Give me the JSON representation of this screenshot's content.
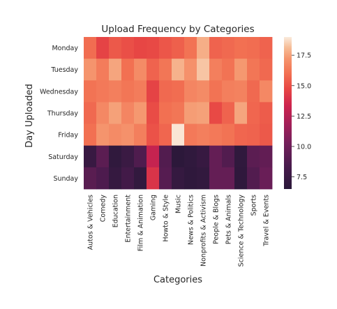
{
  "chart_data": {
    "type": "heatmap",
    "title": "Upload Frequency by Categories",
    "xlabel": "Categories",
    "ylabel": "Day Uploaded",
    "x_categories": [
      "Autos & Vehicles",
      "Comedy",
      "Education",
      "Entertainment",
      "Film & Animation",
      "Gaming",
      "Howto & Style",
      "Music",
      "News & Politics",
      "Nonprofits & Activism",
      "People & Blogs",
      "Pets & Animals",
      "Science & Technology",
      "Sports",
      "Travel & Events"
    ],
    "y_categories": [
      "Monday",
      "Tuesday",
      "Wednesday",
      "Thursday",
      "Friday",
      "Saturday",
      "Sunday"
    ],
    "values": [
      [
        15.9,
        14.6,
        15.3,
        15.0,
        14.7,
        14.8,
        15.2,
        15.5,
        16.1,
        17.8,
        15.6,
        15.8,
        16.0,
        15.9,
        15.6
      ],
      [
        17.2,
        16.4,
        17.6,
        16.0,
        16.9,
        15.6,
        16.2,
        17.9,
        17.1,
        18.3,
        16.5,
        16.1,
        17.3,
        16.2,
        15.8
      ],
      [
        16.1,
        16.3,
        16.5,
        16.2,
        16.4,
        14.6,
        15.8,
        15.9,
        16.7,
        16.9,
        16.1,
        16.5,
        16.6,
        15.8,
        16.8
      ],
      [
        15.8,
        16.8,
        17.5,
        16.7,
        17.3,
        14.9,
        16.0,
        16.2,
        17.4,
        17.5,
        14.8,
        15.6,
        17.6,
        15.7,
        15.4
      ],
      [
        16.0,
        17.2,
        16.9,
        17.1,
        16.5,
        15.1,
        15.7,
        18.9,
        16.3,
        16.5,
        16.3,
        16.1,
        15.7,
        15.6,
        15.3
      ],
      [
        7.4,
        9.2,
        6.9,
        7.5,
        8.7,
        13.1,
        8.8,
        6.6,
        6.9,
        7.3,
        9.6,
        8.8,
        6.9,
        9.2,
        9.5
      ],
      [
        9.1,
        8.6,
        7.2,
        8.0,
        7.0,
        14.0,
        9.0,
        7.2,
        6.8,
        7.0,
        9.6,
        9.6,
        6.8,
        8.8,
        9.8
      ]
    ],
    "colorbar": {
      "min": 6.5,
      "max": 19.0,
      "ticks": [
        "7.5",
        "10.0",
        "12.5",
        "15.0",
        "17.5"
      ]
    },
    "colormap": "rocket"
  }
}
